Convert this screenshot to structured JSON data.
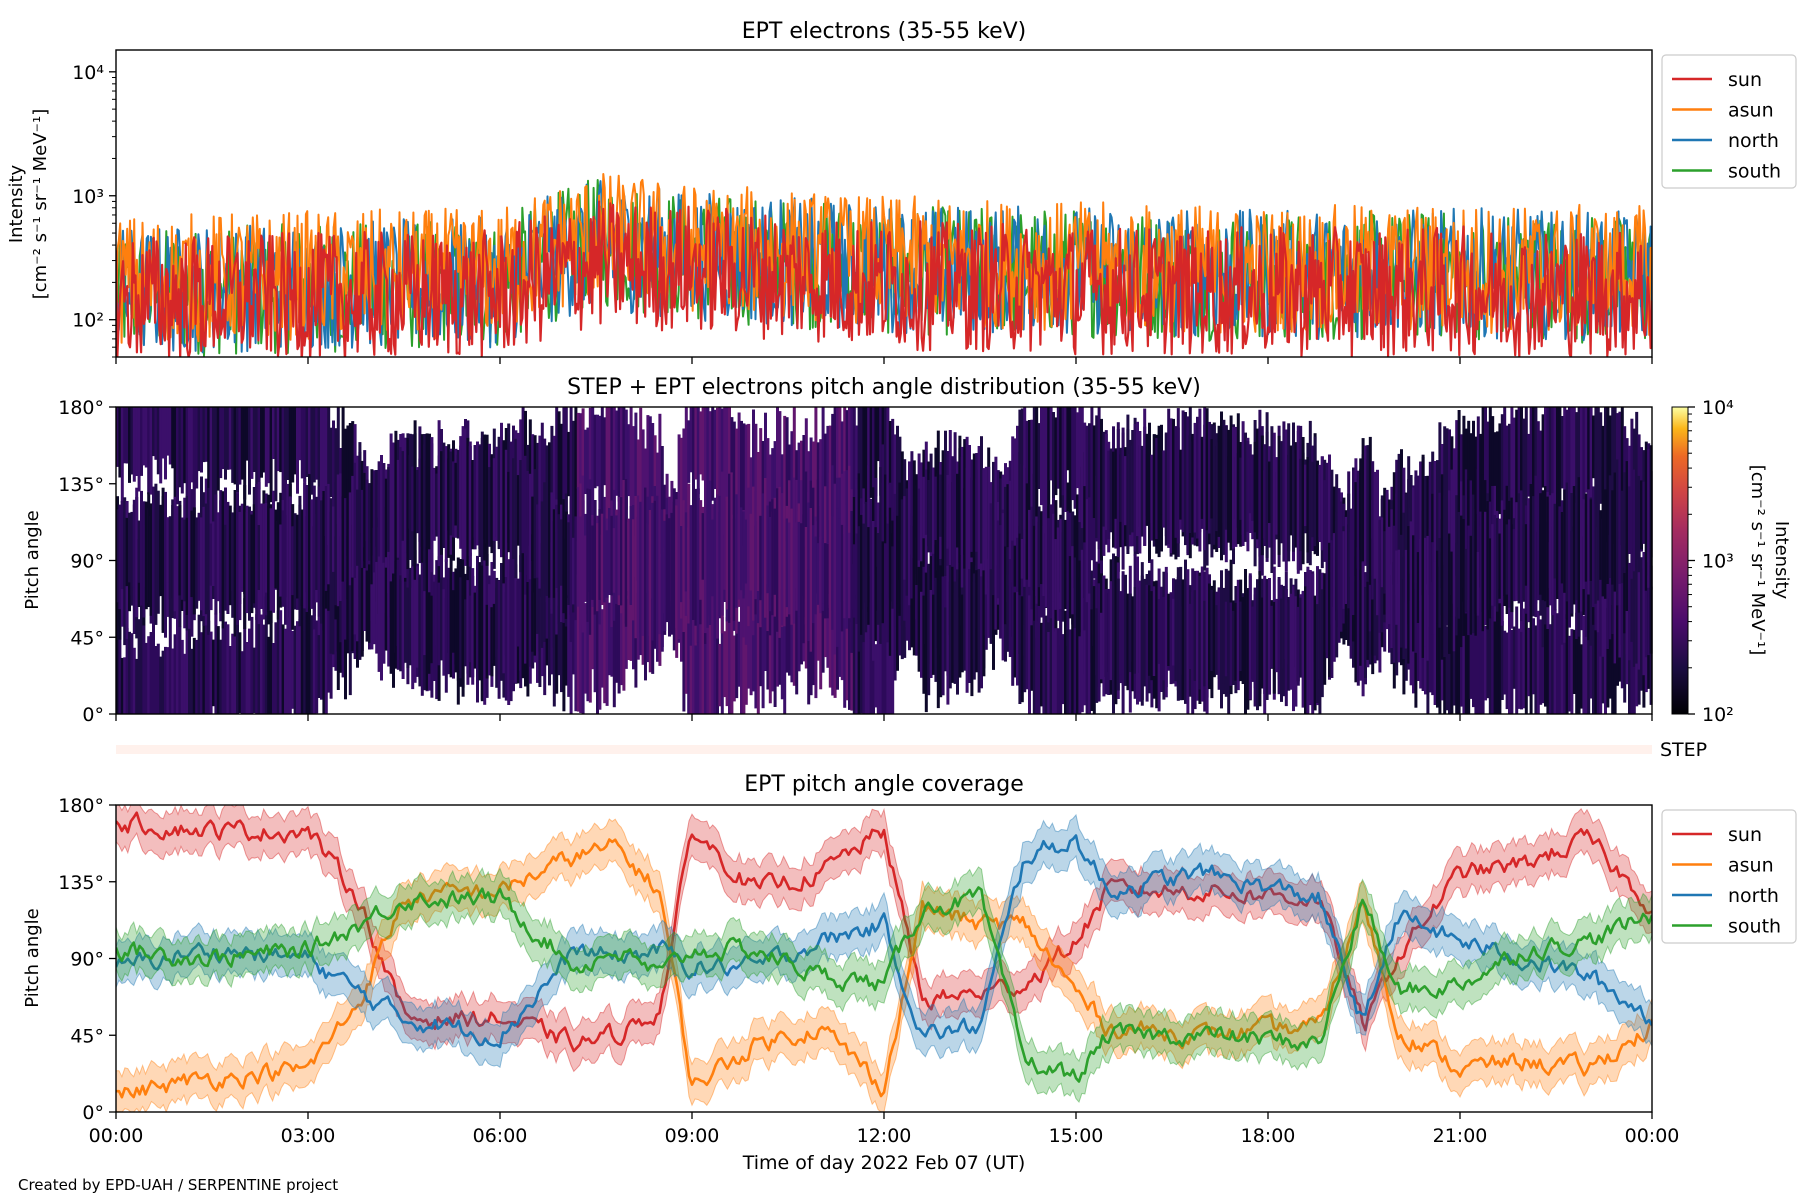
{
  "footer": {
    "credit": "Created by EPD-UAH / SERPENTINE project"
  },
  "xaxis": {
    "label": "Time of day 2022 Feb 07 (UT)",
    "range_hours": [
      0,
      24
    ],
    "ticks": [
      0,
      3,
      6,
      9,
      12,
      15,
      18,
      21,
      24
    ],
    "tick_labels": [
      "00:00",
      "03:00",
      "06:00",
      "09:00",
      "12:00",
      "15:00",
      "18:00",
      "21:00",
      "00:00"
    ]
  },
  "colors": {
    "sun": "#d62728",
    "asun": "#ff7f0e",
    "north": "#1f77b4",
    "south": "#2ca02c"
  },
  "chart_data": [
    {
      "id": "intensity",
      "type": "line",
      "title": "EPT electrons (35-55 keV)",
      "ylabel_line1": "Intensity",
      "ylabel_line2": "[cm⁻² s⁻¹ sr⁻¹ MeV⁻¹]",
      "yscale": "log",
      "ylim": [
        50,
        15000
      ],
      "yticks": [
        100,
        1000,
        10000
      ],
      "ytick_labels": [
        "10²",
        "10³",
        "10⁴"
      ],
      "legend": {
        "placement": "outside-right-top",
        "entries": [
          "sun",
          "asun",
          "north",
          "south"
        ]
      },
      "series": [
        {
          "name": "sun",
          "color": "#d62728",
          "x": [
            0,
            3,
            6,
            7.5,
            9,
            12,
            15,
            18,
            21,
            24
          ],
          "y": [
            150,
            150,
            160,
            280,
            260,
            190,
            175,
            165,
            170,
            160
          ]
        },
        {
          "name": "asun",
          "color": "#ff7f0e",
          "x": [
            0,
            3,
            6,
            7.5,
            9,
            12,
            15,
            18,
            21,
            24
          ],
          "y": [
            210,
            230,
            240,
            480,
            380,
            300,
            270,
            250,
            260,
            250
          ]
        },
        {
          "name": "north",
          "color": "#1f77b4",
          "x": [
            0,
            3,
            6,
            7.5,
            9,
            12,
            15,
            18,
            21,
            24
          ],
          "y": [
            170,
            190,
            200,
            400,
            330,
            260,
            250,
            230,
            240,
            220
          ]
        },
        {
          "name": "south",
          "color": "#2ca02c",
          "x": [
            0,
            3,
            6,
            7.5,
            9,
            12,
            15,
            18,
            21,
            24
          ],
          "y": [
            160,
            180,
            190,
            420,
            320,
            250,
            240,
            220,
            230,
            210
          ]
        }
      ]
    },
    {
      "id": "pad",
      "type": "heatmap",
      "title": "STEP + EPT electrons pitch angle distribution (35-55 keV)",
      "ylabel": "Pitch angle",
      "ylim": [
        0,
        180
      ],
      "yticks": [
        0,
        45,
        90,
        135,
        180
      ],
      "ytick_labels": [
        "0°",
        "45°",
        "90°",
        "135°",
        "180°"
      ],
      "colorbar": {
        "label_line1": "Intensity",
        "label_line2": "[cm⁻² s⁻¹ sr⁻¹ MeV⁻¹]",
        "scale": "log",
        "range": [
          100,
          10000
        ],
        "ticks": [
          100,
          1000,
          10000
        ],
        "tick_labels": [
          "10²",
          "10³",
          "10⁴"
        ],
        "colormap": "inferno"
      }
    },
    {
      "id": "step",
      "type": "heatmap",
      "label": "STEP",
      "color": "#fff1ec"
    },
    {
      "id": "coverage",
      "type": "line",
      "title": "EPT pitch angle coverage",
      "ylabel": "Pitch angle",
      "ylim": [
        0,
        180
      ],
      "yticks": [
        0,
        45,
        90,
        135,
        180
      ],
      "ytick_labels": [
        "0°",
        "45°",
        "90°",
        "135°",
        "180°"
      ],
      "legend": {
        "placement": "outside-right-top",
        "entries": [
          "sun",
          "asun",
          "north",
          "south"
        ]
      },
      "series": [
        {
          "name": "sun",
          "color": "#d62728",
          "x": [
            0,
            1.5,
            3,
            3.8,
            4.5,
            6,
            7.2,
            7.8,
            8.5,
            9,
            10,
            11,
            12,
            12.6,
            13.5,
            14.2,
            15,
            15.5,
            17,
            18.8,
            19.5,
            20,
            21,
            22,
            23,
            24
          ],
          "y": [
            170,
            165,
            165,
            125,
            55,
            55,
            40,
            45,
            60,
            165,
            130,
            140,
            165,
            65,
            70,
            75,
            100,
            130,
            130,
            125,
            50,
            90,
            140,
            145,
            160,
            120
          ]
        },
        {
          "name": "asun",
          "color": "#ff7f0e",
          "x": [
            0,
            1.5,
            3,
            3.8,
            4.5,
            6,
            7.2,
            7.8,
            8.5,
            9,
            10,
            11,
            12,
            12.6,
            13.5,
            14.2,
            15,
            15.5,
            17,
            18.8,
            19.5,
            20,
            21,
            22,
            23,
            24
          ],
          "y": [
            10,
            20,
            25,
            65,
            125,
            130,
            150,
            155,
            130,
            15,
            40,
            50,
            15,
            120,
            110,
            110,
            70,
            50,
            45,
            50,
            125,
            50,
            25,
            30,
            25,
            50
          ]
        },
        {
          "name": "north",
          "color": "#1f77b4",
          "x": [
            0,
            1.5,
            3,
            3.8,
            4.5,
            6,
            7.2,
            7.8,
            8.5,
            9,
            10,
            11,
            12,
            12.6,
            13.5,
            14.2,
            15,
            15.5,
            17,
            18.8,
            19.5,
            20,
            21,
            22,
            23,
            24
          ],
          "y": [
            85,
            95,
            90,
            70,
            55,
            45,
            95,
            90,
            95,
            85,
            85,
            100,
            110,
            45,
            50,
            150,
            160,
            130,
            140,
            125,
            50,
            115,
            100,
            90,
            80,
            55
          ]
        },
        {
          "name": "south",
          "color": "#2ca02c",
          "x": [
            0,
            1.5,
            3,
            3.8,
            4.5,
            6,
            7.2,
            7.8,
            8.5,
            9,
            10,
            11,
            12,
            12.6,
            13.5,
            14.2,
            15,
            15.5,
            17,
            18.8,
            19.5,
            20,
            21,
            22,
            23,
            24
          ],
          "y": [
            95,
            90,
            95,
            110,
            125,
            125,
            85,
            95,
            80,
            95,
            95,
            80,
            75,
            120,
            125,
            30,
            20,
            45,
            45,
            40,
            125,
            70,
            75,
            95,
            100,
            115
          ]
        }
      ]
    }
  ]
}
